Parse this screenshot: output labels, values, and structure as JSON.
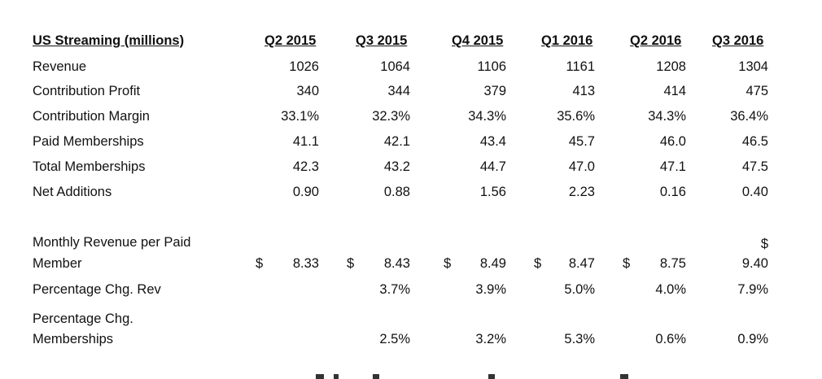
{
  "table": {
    "header": {
      "label": "US Streaming (millions)",
      "quarters": [
        "Q2 2015",
        "Q3 2015",
        "Q4 2015",
        "Q1 2016",
        "Q2 2016",
        "Q3 2016"
      ]
    },
    "rows": [
      {
        "label": "Revenue",
        "values": [
          "1026",
          "1064",
          "1106",
          "1161",
          "1208",
          "1304"
        ]
      },
      {
        "label": "Contribution Profit",
        "values": [
          "340",
          "344",
          "379",
          "413",
          "414",
          "475"
        ]
      },
      {
        "label": "Contribution Margin",
        "values": [
          "33.1%",
          "32.3%",
          "34.3%",
          "35.6%",
          "34.3%",
          "36.4%"
        ]
      },
      {
        "label": "Paid Memberships",
        "values": [
          "41.1",
          "42.1",
          "43.4",
          "45.7",
          "46.0",
          "46.5"
        ]
      },
      {
        "label": "Total Memberships",
        "values": [
          "42.3",
          "43.2",
          "44.7",
          "47.0",
          "47.1",
          "47.5"
        ]
      },
      {
        "label": "Net Additions",
        "values": [
          "0.90",
          "0.88",
          "1.56",
          "2.23",
          "0.16",
          "0.40"
        ]
      }
    ],
    "monthly_revenue": {
      "label_line1": "Monthly Revenue per Paid",
      "label_line2": "Member",
      "currency": "$",
      "values": [
        "8.33",
        "8.43",
        "8.49",
        "8.47",
        "8.75",
        "9.40"
      ]
    },
    "pct_chg_rev": {
      "label": "Percentage Chg. Rev",
      "values": [
        "",
        "3.7%",
        "3.9%",
        "5.0%",
        "4.0%",
        "7.9%"
      ]
    },
    "pct_chg_memberships": {
      "label_line1": "Percentage Chg.",
      "label_line2": "Memberships",
      "values": [
        "",
        "2.5%",
        "3.2%",
        "5.3%",
        "0.6%",
        "0.9%"
      ]
    }
  }
}
